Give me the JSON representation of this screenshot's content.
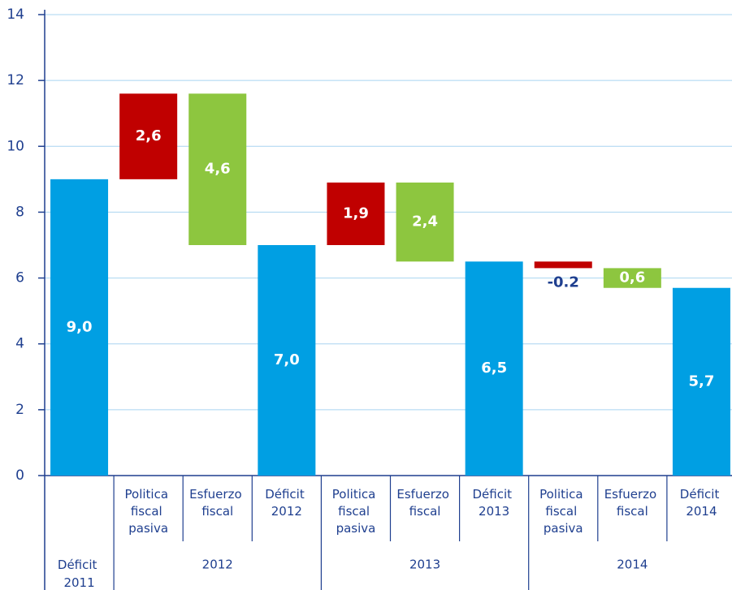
{
  "chart_data": {
    "type": "waterfall",
    "categories": [
      null,
      "Politica fiscal pasiva",
      "Esfuerzo fiscal",
      "Déficit 2012",
      "Politica fiscal pasiva",
      "Esfuerzo fiscal",
      "Déficit 2013",
      "Politica fiscal pasiva",
      "Esfuerzo fiscal",
      "Déficit 2014"
    ],
    "groups": [
      {
        "label": "Déficit 2011",
        "span": 1
      },
      {
        "label": "2012",
        "span": 3
      },
      {
        "label": "2013",
        "span": 3
      },
      {
        "label": "2014",
        "span": 3
      }
    ],
    "values": [
      9.0,
      2.6,
      4.6,
      7.0,
      1.9,
      2.4,
      6.5,
      -0.2,
      0.6,
      5.7
    ],
    "value_labels": [
      "9,0",
      "2,6",
      "4,6",
      "7,0",
      "1,9",
      "2,4",
      "6,5",
      "-0.2",
      "0,6",
      "5,7"
    ],
    "effects": [
      "total",
      "add",
      "subtract",
      "total",
      "add",
      "subtract",
      "total",
      "add",
      "subtract",
      "total"
    ],
    "colors": {
      "total": "#009fe3",
      "add": "#c00000",
      "subtract": "#8dc63f"
    },
    "ylim": [
      0,
      14
    ],
    "yticks": [
      0,
      2,
      4,
      6,
      8,
      10,
      12,
      14
    ],
    "grid": true
  }
}
